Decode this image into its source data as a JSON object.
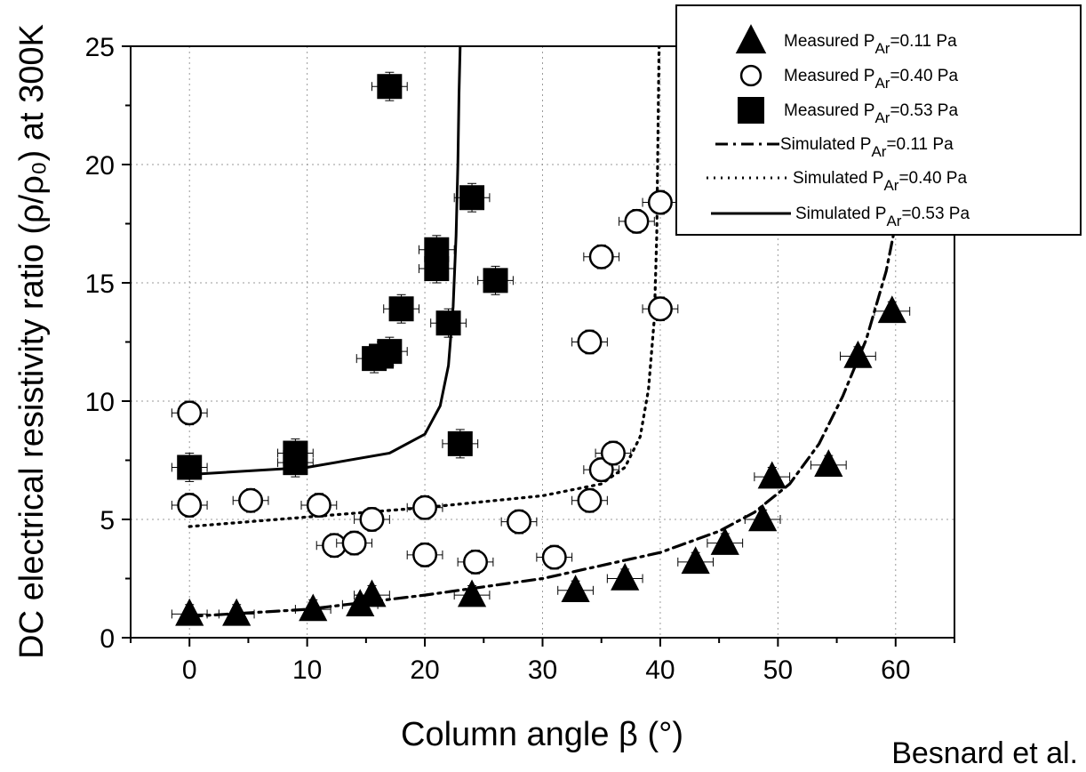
{
  "chart_data": {
    "type": "scatter",
    "xlabel": "Column angle β (°)",
    "ylabel": "DC electrical resistivity ratio (ρ/ρ₀) at 300K",
    "xlim": [
      -5,
      65
    ],
    "ylim": [
      0,
      25
    ],
    "x_ticks": [
      0,
      10,
      20,
      30,
      40,
      50,
      60
    ],
    "y_ticks": [
      0,
      5,
      10,
      15,
      20,
      25
    ],
    "grid": "dotted",
    "legend_position": "top-right",
    "credit": "Besnard et al.",
    "series": [
      {
        "name": "Measured P_Ar=0.11 Pa",
        "legend_prefix": "Measured P",
        "legend_sub": "Ar",
        "legend_suffix": "=0.11 Pa",
        "marker": "triangle",
        "x_error": 1.5,
        "y_error": 0.4,
        "points": [
          [
            0,
            1.0
          ],
          [
            4,
            1.0
          ],
          [
            10.5,
            1.2
          ],
          [
            14.5,
            1.4
          ],
          [
            15.5,
            1.8
          ],
          [
            24,
            1.8
          ],
          [
            32.8,
            2.0
          ],
          [
            37,
            2.5
          ],
          [
            43,
            3.2
          ],
          [
            45.5,
            4.0
          ],
          [
            48.7,
            5.0
          ],
          [
            49.5,
            6.8
          ],
          [
            54.3,
            7.3
          ],
          [
            56.8,
            11.9
          ],
          [
            59.7,
            13.8
          ]
        ]
      },
      {
        "name": "Measured P_Ar=0.40 Pa",
        "legend_prefix": "Measured P",
        "legend_sub": "Ar",
        "legend_suffix": "=0.40 Pa",
        "marker": "circle",
        "x_error": 1.5,
        "y_error": 0.5,
        "points": [
          [
            0,
            9.5
          ],
          [
            0,
            5.6
          ],
          [
            5.2,
            5.8
          ],
          [
            11,
            5.6
          ],
          [
            12.3,
            3.9
          ],
          [
            14,
            4.0
          ],
          [
            15.5,
            5.0
          ],
          [
            20,
            3.5
          ],
          [
            20,
            5.5
          ],
          [
            24.3,
            3.2
          ],
          [
            28,
            4.9
          ],
          [
            31,
            3.4
          ],
          [
            34,
            12.5
          ],
          [
            34,
            5.8
          ],
          [
            35,
            7.1
          ],
          [
            35,
            16.1
          ],
          [
            36,
            7.8
          ],
          [
            38,
            17.6
          ],
          [
            40,
            18.4
          ],
          [
            40,
            13.9
          ]
        ]
      },
      {
        "name": "Measured P_Ar=0.53 Pa",
        "legend_prefix": "Measured P",
        "legend_sub": "Ar",
        "legend_suffix": "=0.53 Pa",
        "marker": "square",
        "x_error": 1.5,
        "y_error": 0.6,
        "points": [
          [
            0,
            7.2
          ],
          [
            9,
            7.8
          ],
          [
            9,
            7.4
          ],
          [
            15.7,
            11.8
          ],
          [
            16.3,
            11.9
          ],
          [
            17,
            12.1
          ],
          [
            17,
            23.3
          ],
          [
            18,
            13.9
          ],
          [
            21,
            16.4
          ],
          [
            21,
            15.6
          ],
          [
            22,
            13.3
          ],
          [
            24,
            18.6
          ],
          [
            23,
            8.2
          ],
          [
            26,
            15.1
          ]
        ]
      },
      {
        "name": "Simulated P_Ar=0.11 Pa",
        "legend_prefix": "Simulated P",
        "legend_sub": "Ar",
        "legend_suffix": "=0.11 Pa",
        "line": "dashdot",
        "points": [
          [
            0,
            0.9
          ],
          [
            10,
            1.2
          ],
          [
            20,
            1.8
          ],
          [
            30,
            2.5
          ],
          [
            40,
            3.6
          ],
          [
            45,
            4.5
          ],
          [
            48,
            5.3
          ],
          [
            51,
            6.5
          ],
          [
            53.5,
            8.2
          ],
          [
            55.5,
            10.2
          ],
          [
            57.5,
            12.6
          ],
          [
            59.2,
            15.5
          ],
          [
            60.4,
            18.5
          ],
          [
            61.1,
            21.5
          ],
          [
            61.5,
            25
          ]
        ]
      },
      {
        "name": "Simulated P_Ar=0.40 Pa",
        "legend_prefix": "Simulated P",
        "legend_sub": "Ar",
        "legend_suffix": "=0.40 Pa",
        "line": "dotted",
        "points": [
          [
            0,
            4.7
          ],
          [
            10,
            5.1
          ],
          [
            20,
            5.5
          ],
          [
            30,
            6.0
          ],
          [
            35,
            6.5
          ],
          [
            37,
            7.2
          ],
          [
            38.3,
            8.5
          ],
          [
            39,
            10.5
          ],
          [
            39.5,
            13.5
          ],
          [
            39.7,
            17
          ],
          [
            39.8,
            21
          ],
          [
            39.9,
            25
          ]
        ]
      },
      {
        "name": "Simulated P_Ar=0.53 Pa",
        "legend_prefix": "Simulated P",
        "legend_sub": "Ar",
        "legend_suffix": "=0.53 Pa",
        "line": "solid",
        "points": [
          [
            0,
            6.9
          ],
          [
            10,
            7.2
          ],
          [
            17,
            7.8
          ],
          [
            20,
            8.6
          ],
          [
            21.3,
            9.8
          ],
          [
            22,
            11.5
          ],
          [
            22.4,
            14
          ],
          [
            22.65,
            17
          ],
          [
            22.8,
            20
          ],
          [
            22.9,
            23
          ],
          [
            23,
            25
          ]
        ]
      }
    ]
  }
}
